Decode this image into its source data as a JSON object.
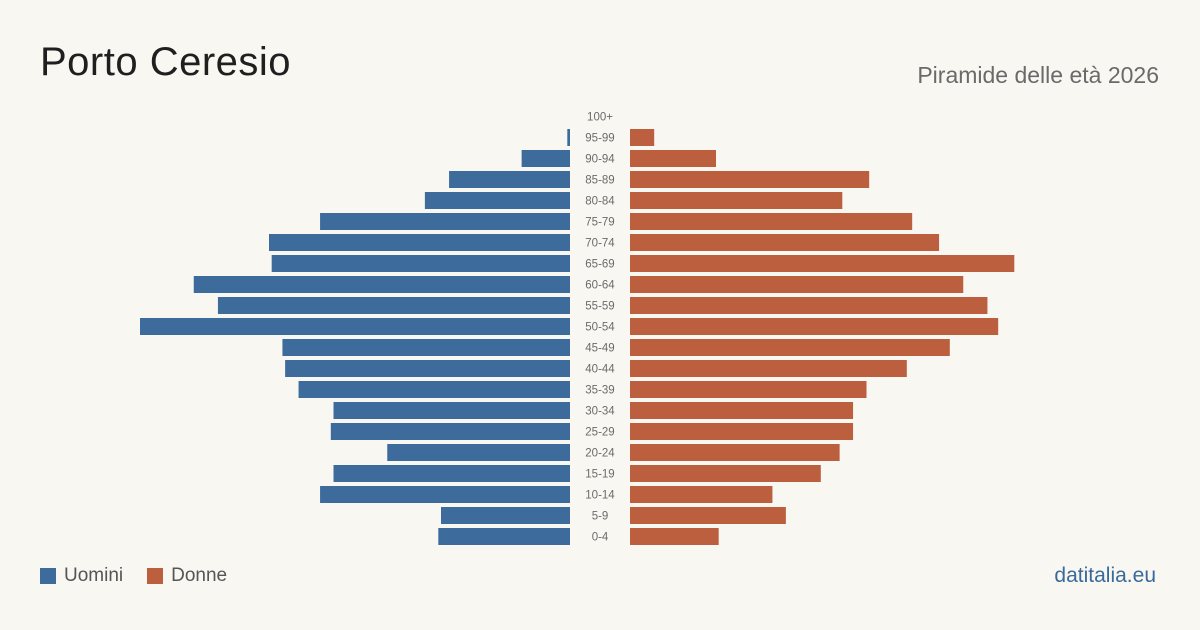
{
  "title": "Porto Ceresio",
  "subtitle": "Piramide delle età 2026",
  "site": "datitalia.eu",
  "colors": {
    "men": "#3c6b9c",
    "women": "#bc5f3e",
    "background": "#f9f7f2"
  },
  "legend": {
    "men": "Uomini",
    "women": "Donne"
  },
  "chart_data": {
    "type": "bar",
    "orientation": "horizontal-mirrored",
    "categories": [
      "100+",
      "95-99",
      "90-94",
      "85-89",
      "80-84",
      "75-79",
      "70-74",
      "65-69",
      "60-64",
      "55-59",
      "50-54",
      "45-49",
      "40-44",
      "35-39",
      "30-34",
      "25-29",
      "20-24",
      "15-19",
      "10-14",
      "5-9",
      "0-4"
    ],
    "series": [
      {
        "name": "Uomini",
        "values": [
          0,
          1,
          18,
          45,
          54,
          93,
          112,
          111,
          140,
          131,
          160,
          107,
          106,
          101,
          88,
          89,
          68,
          88,
          93,
          48,
          49
        ]
      },
      {
        "name": "Donne",
        "values": [
          0,
          9,
          32,
          89,
          79,
          105,
          115,
          143,
          124,
          133,
          137,
          119,
          103,
          88,
          83,
          83,
          78,
          71,
          53,
          58,
          33
        ]
      }
    ],
    "xlim": [
      0,
      160
    ],
    "legend_position": "bottom-left"
  }
}
